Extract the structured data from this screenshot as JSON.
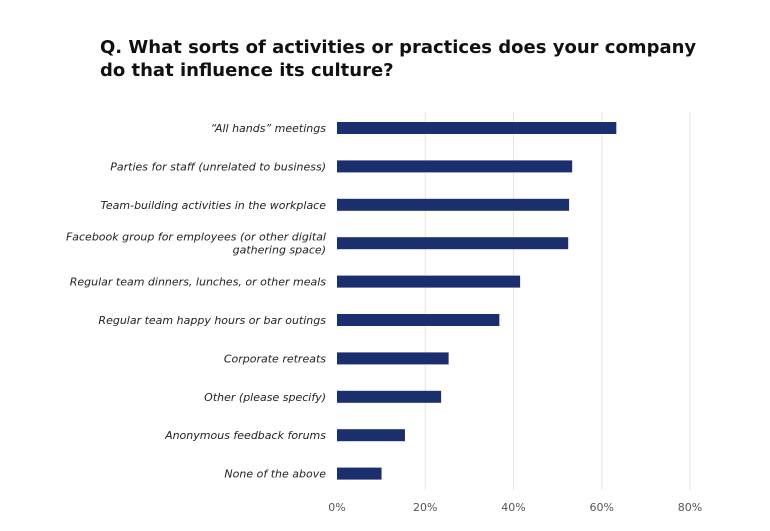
{
  "chart_data": {
    "type": "bar",
    "orientation": "horizontal",
    "title": "Q.  What sorts of activities or practices does your company do that influence its culture?",
    "categories": [
      [
        "“All hands” meetings"
      ],
      [
        "Parties for staff (unrelated to business)"
      ],
      [
        "Team-building activities in the workplace"
      ],
      [
        "Facebook group for employees (or other digital",
        "gathering space)"
      ],
      [
        "Regular team dinners, lunches, or other meals"
      ],
      [
        "Regular team happy hours or bar outings"
      ],
      [
        "Corporate retreats"
      ],
      [
        "Other (please specify)"
      ],
      [
        "Anonymous feedback forums"
      ],
      [
        "None of the above"
      ]
    ],
    "values": [
      63.3,
      53.3,
      52.6,
      52.4,
      41.5,
      36.8,
      25.3,
      23.6,
      15.4,
      10.1
    ],
    "xlim": [
      0,
      80
    ],
    "xticks": [
      0,
      20,
      40,
      60,
      80
    ],
    "tick_suffix": "%",
    "grid": true,
    "bar_color": "#1b2f6e",
    "grid_color": "#e6e6e6"
  }
}
